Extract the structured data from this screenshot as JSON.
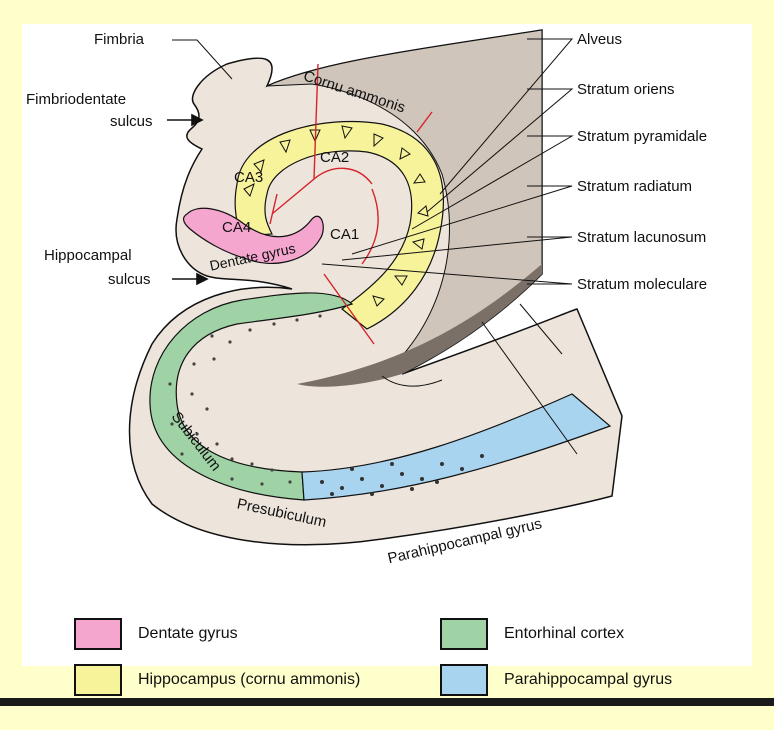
{
  "labels_left": {
    "fimbria": "Fimbria",
    "fimbriodentate_1": "Fimbriodentate",
    "fimbriodentate_2": "sulcus",
    "hippocampal_1": "Hippocampal",
    "hippocampal_2": "sulcus"
  },
  "labels_right": {
    "alveus": "Alveus",
    "stratum_oriens": "Stratum oriens",
    "stratum_pyramidale": "Stratum pyramidale",
    "stratum_radiatum": "Stratum radiatum",
    "stratum_lacunosum": "Stratum lacunosum",
    "stratum_moleculare": "Stratum moleculare"
  },
  "labels_inner": {
    "cornu_ammonis": "Cornu ammonis",
    "ca1": "CA1",
    "ca2": "CA2",
    "ca3": "CA3",
    "ca4": "CA4",
    "dentate_gyrus": "Dentate gyrus",
    "subiculum": "Subiculum",
    "presubiculum": "Presubiculum",
    "parahippocampal_gyrus": "Parahippocampal gyrus"
  },
  "legend": [
    {
      "label": "Dentate gyrus",
      "color": "#f4a6cf"
    },
    {
      "label": "Entorhinal cortex",
      "color": "#9fd2a4"
    },
    {
      "label": "Hippocampus (cornu ammonis)",
      "color": "#f7f39a"
    },
    {
      "label": "Parahippocampal gyrus",
      "color": "#a9d4ef"
    }
  ],
  "colors": {
    "background": "#ffffcc",
    "tissue": "#ede5dc",
    "tissue_dark": "#cfc5ba",
    "shadow": "#7a7068",
    "pathway": "#d6242c"
  }
}
